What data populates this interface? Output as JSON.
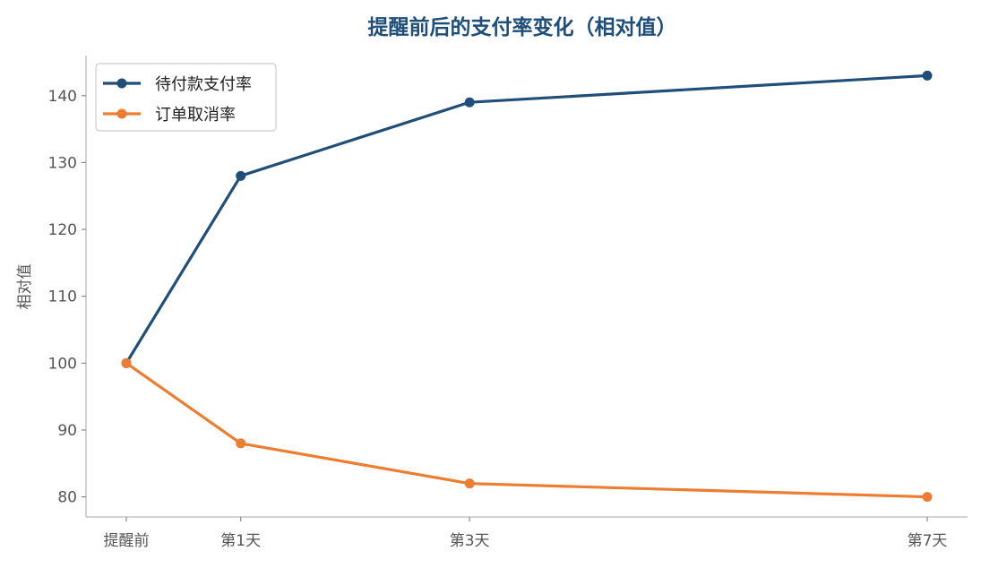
{
  "chart_data": {
    "type": "line",
    "title": "提醒前后的支付率变化（相对值）",
    "xlabel": "",
    "ylabel": "相对值",
    "categories": [
      "提醒前",
      "第1天",
      "第3天",
      "第7天"
    ],
    "x": [
      0,
      1,
      3,
      7
    ],
    "ylim": [
      77,
      146
    ],
    "yticks": [
      80,
      90,
      100,
      110,
      120,
      130,
      140
    ],
    "grid": false,
    "legend_position": "top-left",
    "series": [
      {
        "name": "待付款支付率",
        "values": [
          100,
          128,
          139,
          143
        ],
        "color": "#1f4e79"
      },
      {
        "name": "订单取消率",
        "values": [
          100,
          88,
          82,
          80
        ],
        "color": "#ed7d31"
      }
    ]
  },
  "colors": {
    "title": "#1f4e79",
    "axis": "#bbbbbb"
  }
}
